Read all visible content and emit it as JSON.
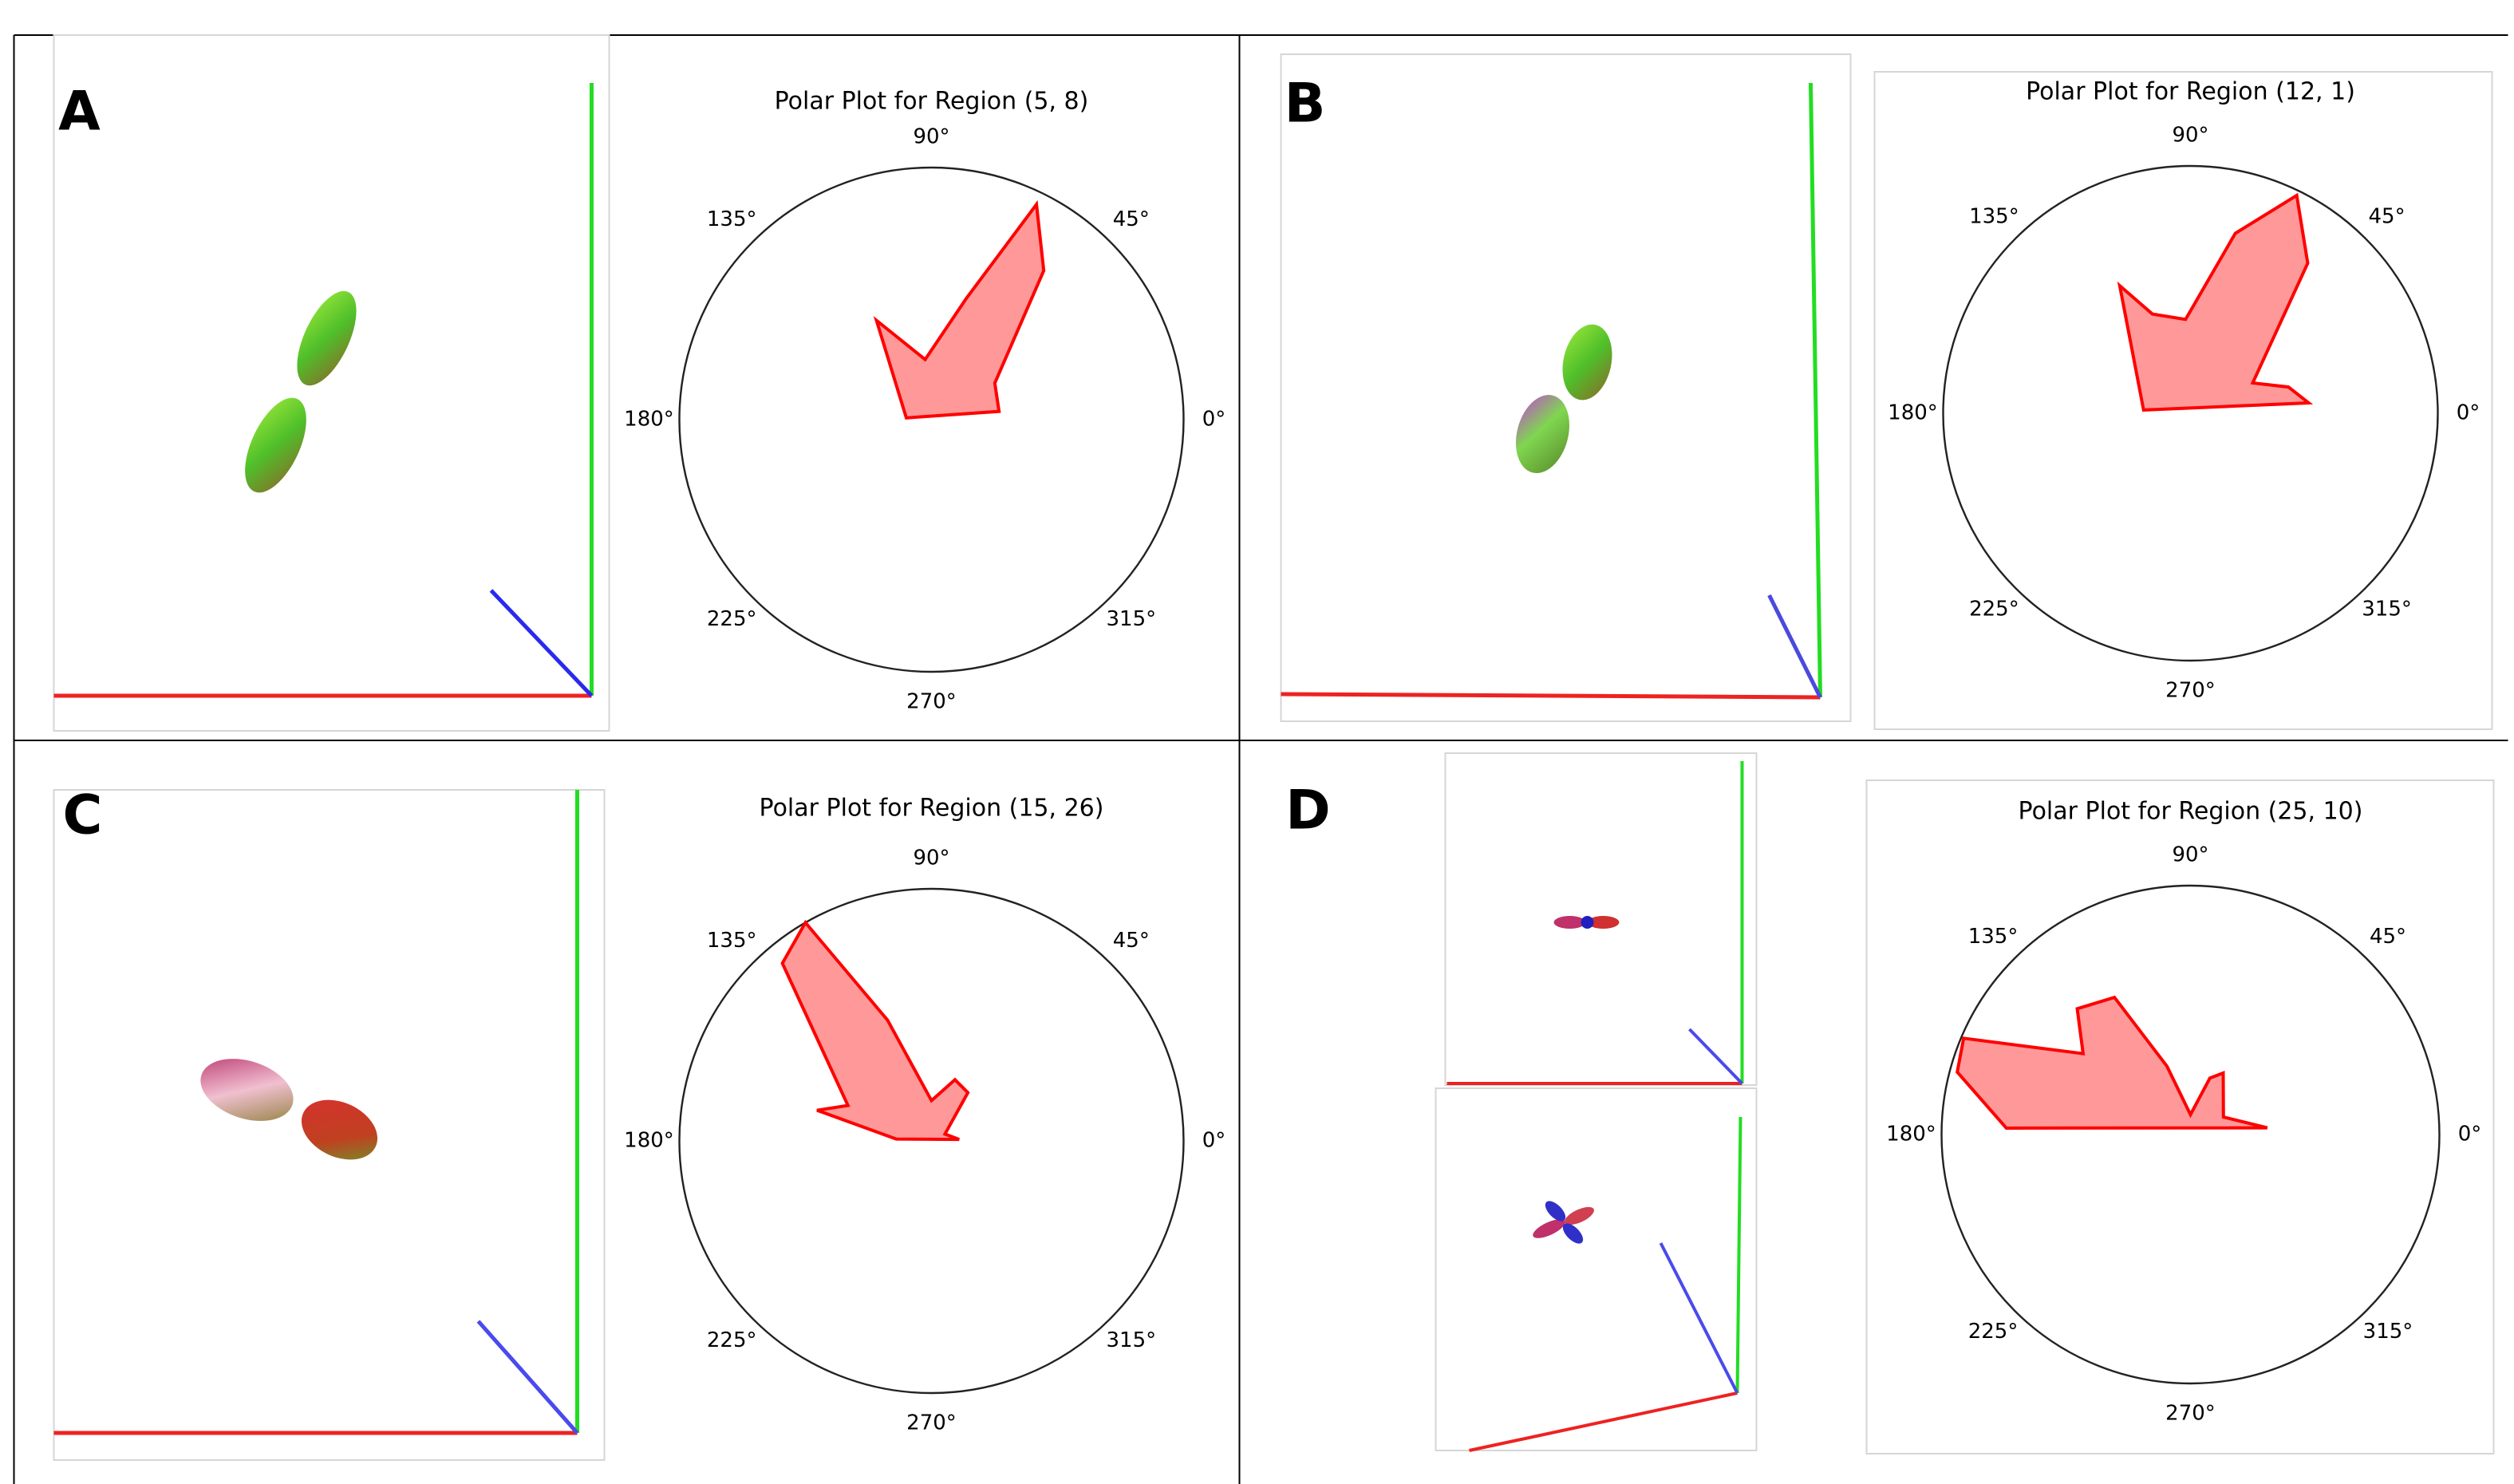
{
  "panel_labels": [
    "A",
    "B",
    "C",
    "D"
  ],
  "chart_data": [
    {
      "type": "polar",
      "title": "Polar Plot for Region (5, 8)",
      "x": [
        7,
        30,
        53,
        64,
        74,
        96,
        119,
        176
      ],
      "values": [
        0.27,
        0.29,
        0.74,
        0.95,
        0.5,
        0.24,
        0.45,
        0.1
      ],
      "rlim": [
        0,
        1
      ],
      "color": "#ff0000",
      "fill": "#ff9999",
      "grid": false,
      "xticks": [
        {
          "value": 0,
          "label": "0°"
        },
        {
          "value": 45,
          "label": "45°"
        },
        {
          "value": 90,
          "label": "90°"
        },
        {
          "value": 135,
          "label": "135°"
        },
        {
          "value": 180,
          "label": "180°"
        },
        {
          "value": 225,
          "label": "225°"
        },
        {
          "value": 270,
          "label": "270°"
        },
        {
          "value": 315,
          "label": "315°"
        }
      ]
    },
    {
      "type": "polar",
      "title": "Polar Plot for Region (12, 1)",
      "x": [
        5,
        15,
        26,
        52,
        64,
        76,
        93,
        111,
        119,
        176
      ],
      "values": [
        0.48,
        0.41,
        0.28,
        0.77,
        0.98,
        0.75,
        0.38,
        0.43,
        0.59,
        0.19
      ],
      "rlim": [
        0,
        1
      ],
      "color": "#ff0000",
      "fill": "#ff9999",
      "grid": false,
      "xticks": [
        {
          "value": 0,
          "label": "0°"
        },
        {
          "value": 45,
          "label": "45°"
        },
        {
          "value": 90,
          "label": "90°"
        },
        {
          "value": 135,
          "label": "135°"
        },
        {
          "value": 180,
          "label": "180°"
        },
        {
          "value": 225,
          "label": "225°"
        },
        {
          "value": 270,
          "label": "270°"
        },
        {
          "value": 315,
          "label": "315°"
        }
      ]
    },
    {
      "type": "polar",
      "title": "Polar Plot for Region (15, 26)",
      "x": [
        3,
        27,
        53,
        69,
        90,
        110,
        120,
        130,
        157,
        165,
        177
      ],
      "values": [
        0.11,
        0.06,
        0.24,
        0.26,
        0.16,
        0.51,
        1.0,
        0.92,
        0.36,
        0.47,
        0.14
      ],
      "rlim": [
        0,
        1
      ],
      "color": "#ff0000",
      "fill": "#ff9999",
      "grid": false,
      "xticks": [
        {
          "value": 0,
          "label": "0°"
        },
        {
          "value": 45,
          "label": "45°"
        },
        {
          "value": 90,
          "label": "90°"
        },
        {
          "value": 135,
          "label": "135°"
        },
        {
          "value": 180,
          "label": "180°"
        },
        {
          "value": 225,
          "label": "225°"
        },
        {
          "value": 270,
          "label": "270°"
        },
        {
          "value": 315,
          "label": "315°"
        }
      ]
    },
    {
      "type": "polar",
      "title": "Polar Plot for Region (25, 10)",
      "x": [
        5,
        28,
        62,
        71,
        90,
        109,
        119,
        132,
        143,
        157,
        165,
        178
      ],
      "values": [
        0.31,
        0.15,
        0.28,
        0.24,
        0.08,
        0.29,
        0.63,
        0.68,
        0.54,
        0.99,
        0.97,
        0.74
      ],
      "rlim": [
        0,
        1
      ],
      "color": "#ff0000",
      "fill": "#ff9999",
      "grid": false,
      "xticks": [
        {
          "value": 0,
          "label": "0°"
        },
        {
          "value": 45,
          "label": "45°"
        },
        {
          "value": 90,
          "label": "90°"
        },
        {
          "value": 135,
          "label": "135°"
        },
        {
          "value": 180,
          "label": "180°"
        },
        {
          "value": 225,
          "label": "225°"
        },
        {
          "value": 270,
          "label": "270°"
        },
        {
          "value": 315,
          "label": "315°"
        }
      ]
    }
  ]
}
